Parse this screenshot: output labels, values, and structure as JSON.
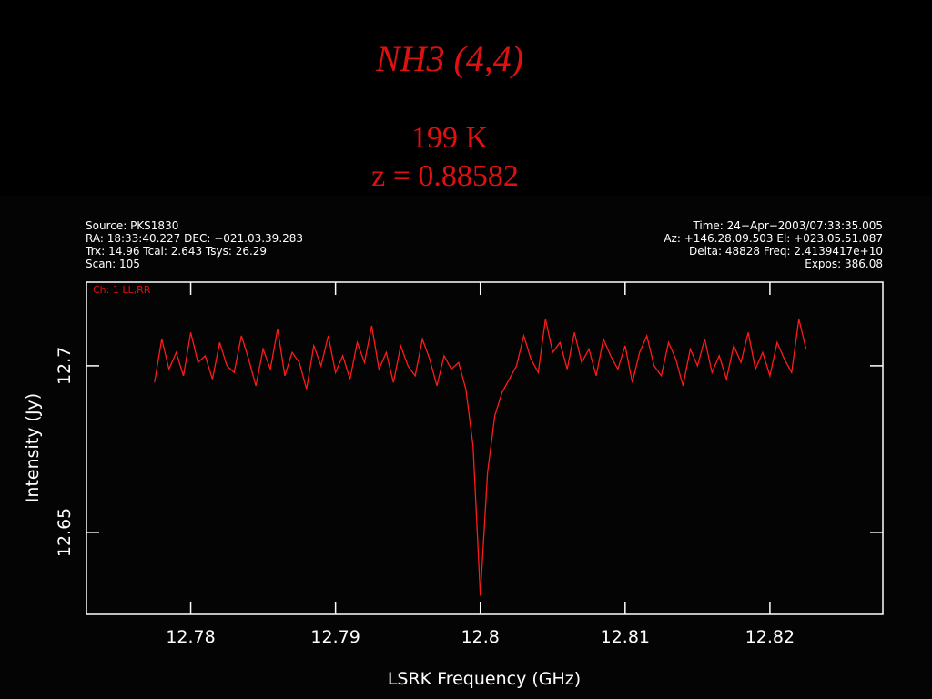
{
  "chart_data": {
    "type": "line",
    "title": "NH3 (4,4)",
    "subtitle": [
      "199 K",
      "z = 0.88582"
    ],
    "header_left": [
      "Source: PKS1830",
      "RA: 18:33:40.227 DEC: −021.03.39.283",
      "Trx: 14.96 Tcal: 2.643 Tsys: 26.29",
      "Scan: 105"
    ],
    "header_right": [
      "Time: 24−Apr−2003/07:33:35.005",
      "Az: +146.28.09.503 El: +023.05.51.087",
      "Delta: 48828 Freq: 2.4139417e+10",
      "Expos: 386.08"
    ],
    "channel_label": "Ch: 1 LL,RR",
    "x_label": "LSRK Frequency (GHz)",
    "y_label": "Intensity (Jy)",
    "color": "#ff1a1a",
    "xlim": [
      12.7728,
      12.8278
    ],
    "ylim": [
      12.6254,
      12.7251
    ],
    "xticks": [
      12.78,
      12.79,
      12.8,
      12.81,
      12.82
    ],
    "yticks": [
      12.65,
      12.7
    ],
    "x": [
      12.7775,
      12.778,
      12.7785,
      12.779,
      12.7795,
      12.78,
      12.7805,
      12.781,
      12.7815,
      12.782,
      12.7825,
      12.783,
      12.7835,
      12.784,
      12.7845,
      12.785,
      12.7855,
      12.786,
      12.7865,
      12.787,
      12.7875,
      12.788,
      12.7885,
      12.789,
      12.7895,
      12.79,
      12.7905,
      12.791,
      12.7915,
      12.792,
      12.7925,
      12.793,
      12.7935,
      12.794,
      12.7945,
      12.795,
      12.7955,
      12.796,
      12.7965,
      12.797,
      12.7975,
      12.798,
      12.7985,
      12.799,
      12.7995,
      12.8,
      12.8005,
      12.801,
      12.8015,
      12.802,
      12.8025,
      12.803,
      12.8035,
      12.804,
      12.8045,
      12.805,
      12.8055,
      12.806,
      12.8065,
      12.807,
      12.8075,
      12.808,
      12.8085,
      12.809,
      12.8095,
      12.81,
      12.8105,
      12.811,
      12.8115,
      12.812,
      12.8125,
      12.813,
      12.8135,
      12.814,
      12.8145,
      12.815,
      12.8155,
      12.816,
      12.8165,
      12.817,
      12.8175,
      12.818,
      12.8185,
      12.819,
      12.8195,
      12.82,
      12.8205,
      12.821,
      12.8215,
      12.822,
      12.8225
    ],
    "values": [
      12.695,
      12.708,
      12.699,
      12.704,
      12.697,
      12.71,
      12.701,
      12.703,
      12.696,
      12.707,
      12.7,
      12.698,
      12.709,
      12.702,
      12.694,
      12.705,
      12.699,
      12.711,
      12.697,
      12.704,
      12.701,
      12.693,
      12.706,
      12.7,
      12.709,
      12.698,
      12.703,
      12.696,
      12.707,
      12.701,
      12.712,
      12.699,
      12.704,
      12.695,
      12.706,
      12.7,
      12.697,
      12.708,
      12.702,
      12.694,
      12.703,
      12.699,
      12.701,
      12.693,
      12.676,
      12.631,
      12.668,
      12.685,
      12.692,
      12.696,
      12.7,
      12.709,
      12.702,
      12.698,
      12.714,
      12.704,
      12.707,
      12.699,
      12.71,
      12.701,
      12.705,
      12.697,
      12.708,
      12.703,
      12.699,
      12.706,
      12.695,
      12.704,
      12.709,
      12.7,
      12.697,
      12.707,
      12.702,
      12.694,
      12.705,
      12.7,
      12.708,
      12.698,
      12.703,
      12.696,
      12.706,
      12.701,
      12.71,
      12.699,
      12.704,
      12.697,
      12.707,
      12.702,
      12.698,
      12.714,
      12.705
    ]
  }
}
